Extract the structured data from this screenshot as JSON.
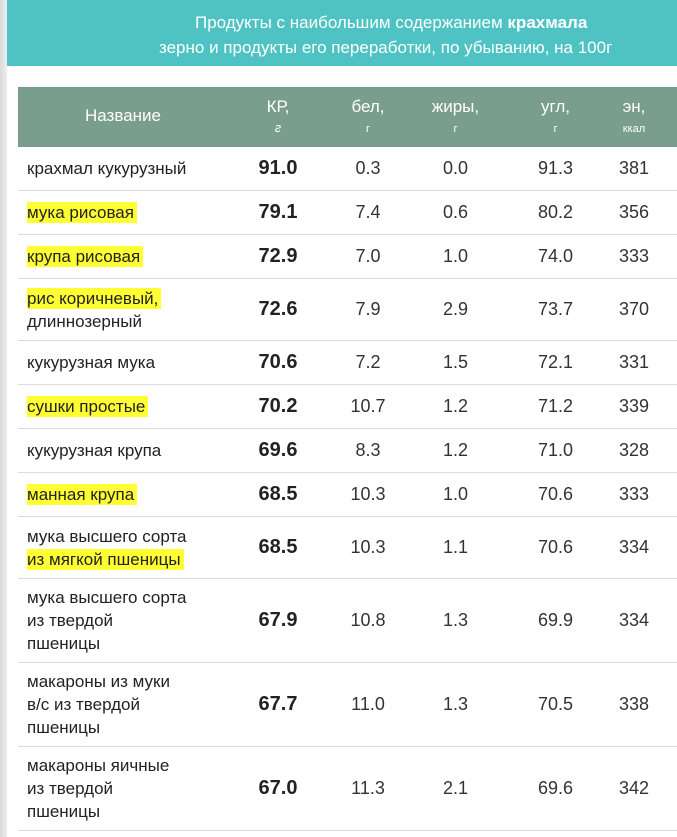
{
  "banner": {
    "line1_prefix": "Продукты с наибольшим содержанием ",
    "line1_bold": "крахмала",
    "line2": "зерно и продукты его переработки, по убыванию, на 100г"
  },
  "headers": {
    "name": "Название",
    "kr": "КР,",
    "kr_unit": "г",
    "protein": "бел,",
    "protein_unit": "г",
    "fat": "жиры,",
    "fat_unit": "г",
    "carb": "угл,",
    "carb_unit": "г",
    "energy": "эн,",
    "energy_unit": "ккал"
  },
  "rows": [
    {
      "name_lines": [
        "крахмал кукурузный"
      ],
      "highlight_lines": [],
      "kr": "91.0",
      "protein": "0.3",
      "fat": "0.0",
      "carb": "91.3",
      "energy": "381"
    },
    {
      "name_lines": [
        "мука рисовая"
      ],
      "highlight_lines": [
        0
      ],
      "kr": "79.1",
      "protein": "7.4",
      "fat": "0.6",
      "carb": "80.2",
      "energy": "356"
    },
    {
      "name_lines": [
        "крупа рисовая"
      ],
      "highlight_lines": [
        0
      ],
      "kr": "72.9",
      "protein": "7.0",
      "fat": "1.0",
      "carb": "74.0",
      "energy": "333"
    },
    {
      "name_lines": [
        "рис коричневый,",
        "длиннозерный"
      ],
      "highlight_lines": [
        0
      ],
      "kr": "72.6",
      "protein": "7.9",
      "fat": "2.9",
      "carb": "73.7",
      "energy": "370"
    },
    {
      "name_lines": [
        "кукурузная мука"
      ],
      "highlight_lines": [],
      "kr": "70.6",
      "protein": "7.2",
      "fat": "1.5",
      "carb": "72.1",
      "energy": "331"
    },
    {
      "name_lines": [
        "сушки простые"
      ],
      "highlight_lines": [
        0
      ],
      "kr": "70.2",
      "protein": "10.7",
      "fat": "1.2",
      "carb": "71.2",
      "energy": "339"
    },
    {
      "name_lines": [
        "кукурузная крупа"
      ],
      "highlight_lines": [],
      "kr": "69.6",
      "protein": "8.3",
      "fat": "1.2",
      "carb": "71.0",
      "energy": "328"
    },
    {
      "name_lines": [
        "манная крупа"
      ],
      "highlight_lines": [
        0
      ],
      "kr": "68.5",
      "protein": "10.3",
      "fat": "1.0",
      "carb": "70.6",
      "energy": "333"
    },
    {
      "name_lines": [
        "мука высшего сорта",
        "из мягкой пшеницы"
      ],
      "highlight_lines": [
        1
      ],
      "kr": "68.5",
      "protein": "10.3",
      "fat": "1.1",
      "carb": "70.6",
      "energy": "334"
    },
    {
      "name_lines": [
        "мука высшего сорта",
        "из твердой",
        "пшеницы"
      ],
      "highlight_lines": [],
      "kr": "67.9",
      "protein": "10.8",
      "fat": "1.3",
      "carb": "69.9",
      "energy": "334"
    },
    {
      "name_lines": [
        "макароны из муки",
        "в/с из твердой",
        "пшеницы"
      ],
      "highlight_lines": [],
      "kr": "67.7",
      "protein": "11.0",
      "fat": "1.3",
      "carb": "70.5",
      "energy": "338"
    },
    {
      "name_lines": [
        "макароны яичные",
        "из твердой",
        "пшеницы"
      ],
      "highlight_lines": [],
      "kr": "67.0",
      "protein": "11.3",
      "fat": "2.1",
      "carb": "69.6",
      "energy": "342"
    }
  ],
  "colors": {
    "banner": "#4fc3c3",
    "header": "#7a9e8e",
    "highlight": "#ffff33"
  }
}
